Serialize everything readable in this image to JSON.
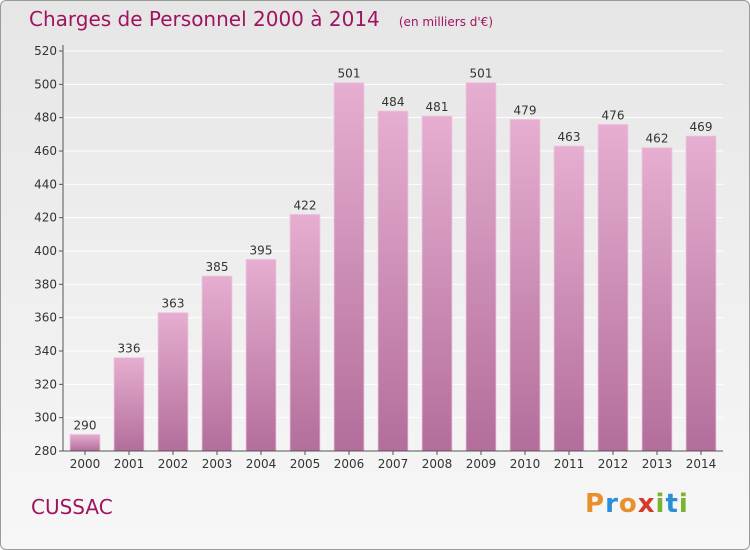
{
  "title": "Charges de Personnel 2000 à 2014",
  "unit_note": "(en milliers d'€)",
  "city": "CUSSAC",
  "logo": {
    "letters": [
      "P",
      "r",
      "o",
      "x",
      "i",
      "t",
      "i"
    ],
    "colors": [
      "#e8902c",
      "#2d8fd5",
      "#e8902c",
      "#d43b2b",
      "#7ab32e",
      "#2d8fd5",
      "#7ab32e"
    ]
  },
  "colors": {
    "accent": "#a0135f",
    "bar_top": "#e6aed0",
    "bar_bottom": "#b36e9b",
    "grid": "#ffffff",
    "text": "#333333"
  },
  "chart_data": {
    "type": "bar",
    "categories": [
      "2000",
      "2001",
      "2002",
      "2003",
      "2004",
      "2005",
      "2006",
      "2007",
      "2008",
      "2009",
      "2010",
      "2011",
      "2012",
      "2013",
      "2014"
    ],
    "values": [
      290,
      336,
      363,
      385,
      395,
      422,
      501,
      484,
      481,
      501,
      479,
      463,
      476,
      462,
      469
    ],
    "data_labels": [
      "290",
      "336",
      "363",
      "385",
      "395",
      "422",
      "501",
      "484",
      "481",
      "501",
      "479",
      "463",
      "476",
      "462",
      "469"
    ],
    "yticks": [
      "280",
      "300",
      "320",
      "340",
      "360",
      "380",
      "400",
      "420",
      "440",
      "460",
      "480",
      "500",
      "520"
    ],
    "ylim": [
      280,
      520
    ],
    "grid": true,
    "xlabel": "",
    "ylabel": ""
  }
}
